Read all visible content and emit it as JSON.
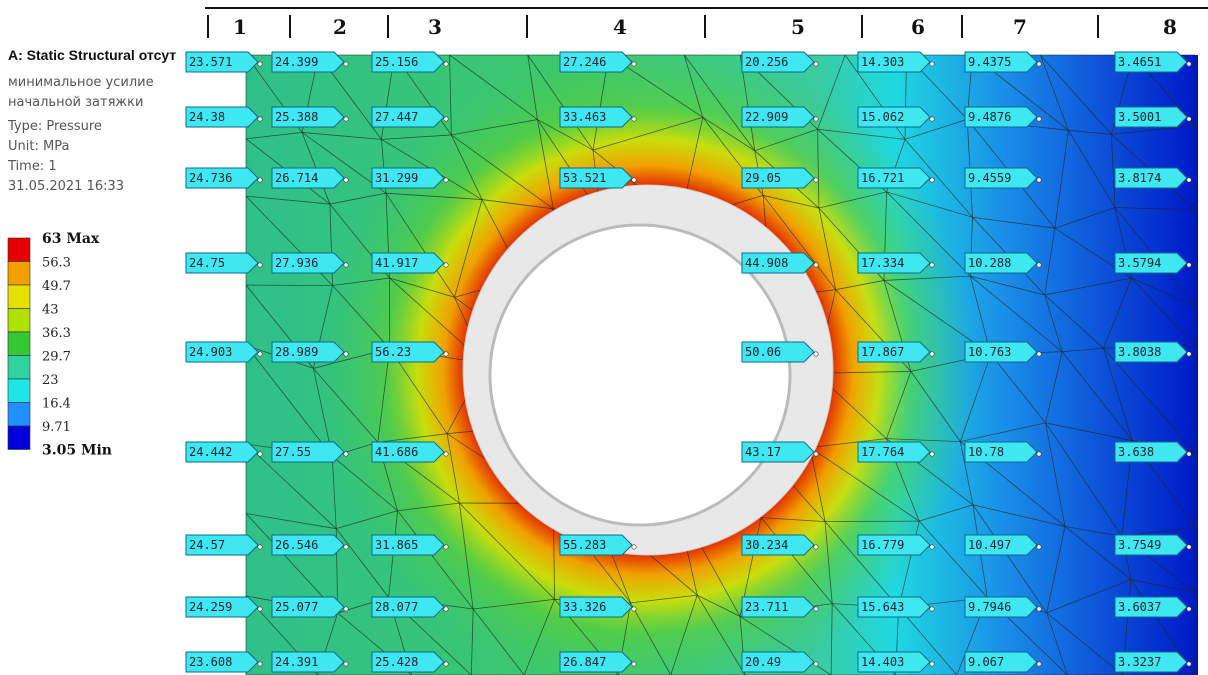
{
  "header": {
    "title": "A: Static Structural отсут",
    "lines": [
      "минимальное усилие",
      "начальной затяжки",
      "Type: Pressure",
      "Unit: MPa",
      "Time: 1",
      "31.05.2021 16:33"
    ]
  },
  "legend": {
    "labels": [
      "63 Max",
      "56.3",
      "49.7",
      "43",
      "36.3",
      "29.7",
      "23",
      "16.4",
      "9.71",
      "3.05 Min"
    ],
    "colors": [
      "#e60000",
      "#f2a000",
      "#e6e000",
      "#b0e000",
      "#34c834",
      "#2ed3a0",
      "#1ee6e6",
      "#1e90ff",
      "#0000dc"
    ]
  },
  "columns": [
    {
      "number": "1",
      "probes": [
        "23.571",
        "24.38",
        "24.736",
        "24.75",
        "24.903",
        "24.442",
        "24.57",
        "24.259",
        "23.608"
      ]
    },
    {
      "number": "2",
      "probes": [
        "24.399",
        "25.388",
        "26.714",
        "27.936",
        "28.989",
        "27.55",
        "26.546",
        "25.077",
        "24.391"
      ]
    },
    {
      "number": "3",
      "probes": [
        "25.156",
        "27.447",
        "31.299",
        "41.917",
        "56.23",
        "41.686",
        "31.865",
        "28.077",
        "25.428"
      ]
    },
    {
      "number": "4",
      "probes": [
        "27.246",
        "33.463",
        "53.521",
        "55.283",
        "33.326",
        "26.847"
      ]
    },
    {
      "number": "5",
      "probes": [
        "20.256",
        "22.909",
        "29.05",
        "44.908",
        "50.06",
        "43.17",
        "30.234",
        "23.711",
        "20.49"
      ]
    },
    {
      "number": "6",
      "probes": [
        "14.303",
        "15.062",
        "16.721",
        "17.334",
        "17.867",
        "17.764",
        "16.779",
        "15.643",
        "14.403"
      ]
    },
    {
      "number": "7",
      "probes": [
        "9.4375",
        "9.4876",
        "9.4559",
        "10.288",
        "10.763",
        "10.78",
        "10.497",
        "9.7946",
        "9.067"
      ]
    },
    {
      "number": "8",
      "probes": [
        "3.4651",
        "3.5001",
        "3.8174",
        "3.5794",
        "3.8038",
        "3.638",
        "3.7549",
        "3.6037",
        "3.3237"
      ]
    }
  ]
}
